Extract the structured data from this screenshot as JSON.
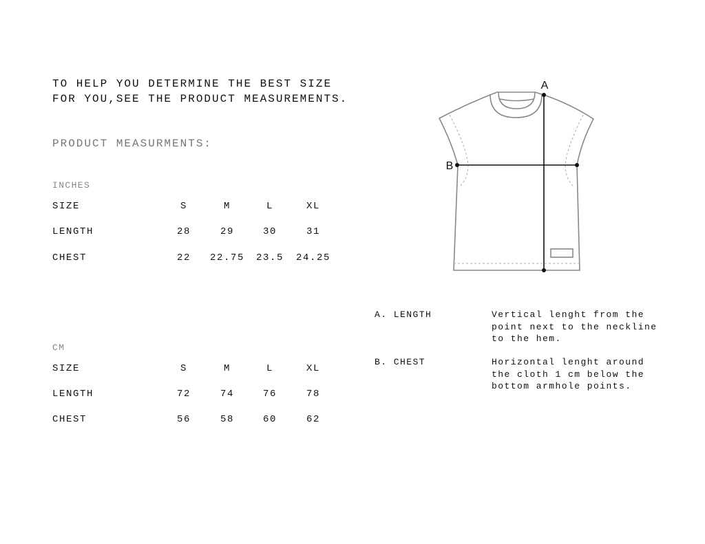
{
  "intro": {
    "line1": "TO HELP YOU DETERMINE THE BEST SIZE",
    "line2": "FOR YOU,SEE THE PRODUCT MEASUREMENTS."
  },
  "heading": "PRODUCT MEASURMENTS:",
  "inches": {
    "unit": "INCHES",
    "rows": [
      {
        "label": "SIZE",
        "values": [
          "S",
          "M",
          "L",
          "XL"
        ]
      },
      {
        "label": "LENGTH",
        "values": [
          "28",
          "29",
          "30",
          "31"
        ]
      },
      {
        "label": "CHEST",
        "values": [
          "22",
          "22.75",
          "23.5",
          "24.25"
        ]
      }
    ]
  },
  "cm": {
    "unit": "CM",
    "rows": [
      {
        "label": "SIZE",
        "values": [
          "S",
          "M",
          "L",
          "XL"
        ]
      },
      {
        "label": "LENGTH",
        "values": [
          "72",
          "74",
          "76",
          "78"
        ]
      },
      {
        "label": "CHEST",
        "values": [
          "56",
          "58",
          "60",
          "62"
        ]
      }
    ]
  },
  "diagram": {
    "point_a": "A",
    "point_b": "B",
    "outline_color": "#888888",
    "line_color": "#111111"
  },
  "legend": [
    {
      "label": "A. LENGTH",
      "lines": [
        "Vertical lenght from the",
        "point next to the neckline",
        "to the hem."
      ]
    },
    {
      "label": "B. CHEST",
      "lines": [
        "Horizontal lenght around",
        "the cloth 1 cm below the",
        "bottom armhole points."
      ]
    }
  ]
}
